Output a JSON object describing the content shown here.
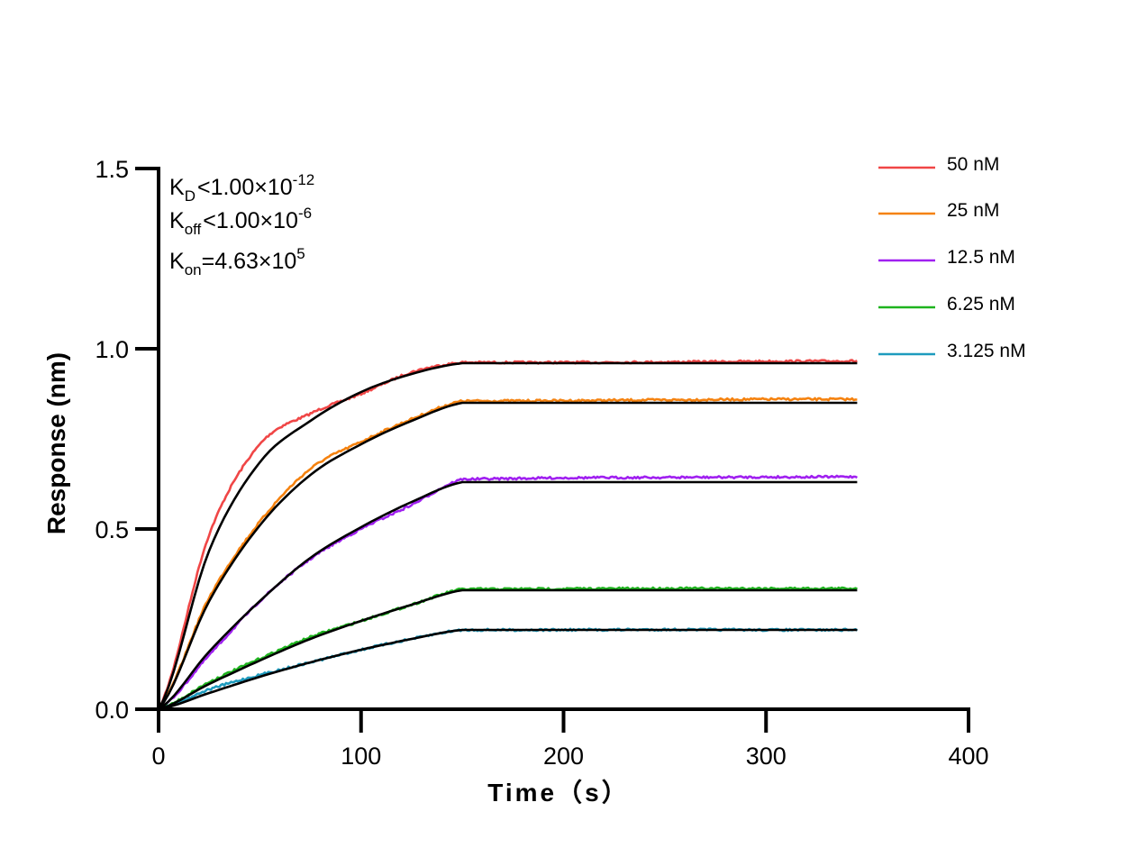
{
  "chart_data": {
    "type": "line",
    "title": "",
    "xlabel": "Time（s）",
    "ylabel": "Response (nm)",
    "xlim": [
      0,
      400
    ],
    "ylim": [
      0,
      1.5
    ],
    "xticks": [
      "0",
      "100",
      "200",
      "300",
      "400"
    ],
    "yticks": [
      "0.0",
      "0.5",
      "1.0",
      "1.5"
    ],
    "grid": false,
    "legend_position": "top-right",
    "annotations": {
      "kd": {
        "symbol": "K",
        "sub": "D",
        "relation": "<",
        "value": "1.00×10",
        "exp": "-12"
      },
      "koff": {
        "symbol": "K",
        "sub": "off",
        "relation": "<",
        "value": "1.00×10",
        "exp": "-6"
      },
      "kon": {
        "symbol": "K",
        "sub": "on",
        "relation": "=",
        "value": "4.63×10",
        "exp": "5"
      }
    },
    "x": [
      0,
      25,
      50,
      75,
      100,
      125,
      150,
      200,
      250,
      300,
      345
    ],
    "series": [
      {
        "name": "50 nM",
        "color": "#f04646",
        "values": [
          0,
          0.485,
          0.735,
          0.82,
          0.875,
          0.935,
          0.962,
          0.962,
          0.963,
          0.965,
          0.966
        ],
        "fit": [
          0,
          0.44,
          0.685,
          0.8,
          0.88,
          0.93,
          0.96,
          0.96,
          0.96,
          0.96,
          0.96
        ]
      },
      {
        "name": "25 nM",
        "color": "#f5820f",
        "values": [
          0,
          0.31,
          0.52,
          0.667,
          0.742,
          0.805,
          0.855,
          0.856,
          0.858,
          0.86,
          0.86
        ],
        "fit": [
          0,
          0.3,
          0.51,
          0.65,
          0.735,
          0.8,
          0.85,
          0.85,
          0.85,
          0.85,
          0.85
        ]
      },
      {
        "name": "12.5 nM",
        "color": "#a020f0",
        "values": [
          0,
          0.15,
          0.3,
          0.417,
          0.5,
          0.567,
          0.638,
          0.642,
          0.643,
          0.644,
          0.645
        ],
        "fit": [
          0,
          0.16,
          0.3,
          0.42,
          0.505,
          0.575,
          0.63,
          0.63,
          0.63,
          0.63,
          0.63
        ]
      },
      {
        "name": "6.25 nM",
        "color": "#1eb41e",
        "values": [
          0,
          0.075,
          0.14,
          0.2,
          0.245,
          0.29,
          0.333,
          0.334,
          0.335,
          0.335,
          0.335
        ],
        "fit": [
          0,
          0.07,
          0.135,
          0.195,
          0.245,
          0.29,
          0.33,
          0.33,
          0.33,
          0.33,
          0.33
        ]
      },
      {
        "name": "3.125 nM",
        "color": "#1e9bbe",
        "values": [
          0,
          0.055,
          0.095,
          0.13,
          0.165,
          0.195,
          0.22,
          0.22,
          0.221,
          0.22,
          0.22
        ],
        "fit": [
          0,
          0.045,
          0.09,
          0.13,
          0.165,
          0.195,
          0.22,
          0.22,
          0.22,
          0.22,
          0.22
        ]
      }
    ],
    "fit_color": "#000000"
  }
}
